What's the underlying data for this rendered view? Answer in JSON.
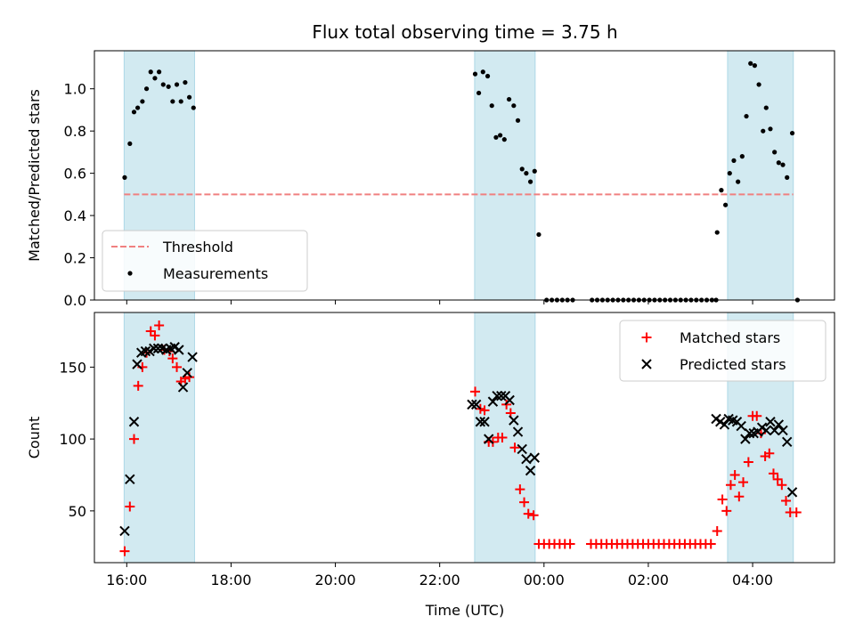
{
  "chart_data": {
    "title": "Flux total observing time = 3.75 h",
    "xlabel": "Time (UTC)",
    "x_unit": "hours since 16:00 UTC",
    "x_range": [
      -0.62,
      13.57
    ],
    "x_ticks": [
      {
        "t": 0,
        "label": "16:00"
      },
      {
        "t": 2,
        "label": "18:00"
      },
      {
        "t": 4,
        "label": "20:00"
      },
      {
        "t": 6,
        "label": "22:00"
      },
      {
        "t": 8,
        "label": "00:00"
      },
      {
        "t": 10,
        "label": "02:00"
      },
      {
        "t": 12,
        "label": "04:00"
      }
    ],
    "shaded_intervals": [
      [
        -0.05,
        1.3
      ],
      [
        6.67,
        7.83
      ],
      [
        11.52,
        12.78
      ]
    ],
    "colors": {
      "shade": "#add8e6",
      "threshold": "#f08080",
      "measurement": "#000000",
      "matched": "#ff0000",
      "predicted": "#000000"
    },
    "panels": [
      {
        "type": "scatter",
        "ylabel": "Matched/Predicted stars",
        "ylim": [
          0,
          1.18
        ],
        "y_ticks": [
          0.0,
          0.2,
          0.4,
          0.6,
          0.8,
          1.0
        ],
        "y_tick_labels": [
          "0.0",
          "0.2",
          "0.4",
          "0.6",
          "0.8",
          "1.0"
        ],
        "legend": [
          "Threshold",
          "Measurements"
        ],
        "legend_location": "lower-left",
        "threshold": {
          "name": "Threshold",
          "value": 0.5,
          "x_range": [
            -0.05,
            12.78
          ]
        },
        "series": [
          {
            "name": "Measurements",
            "marker": "dot",
            "points": [
              [
                -0.04,
                0.58
              ],
              [
                0.06,
                0.74
              ],
              [
                0.14,
                0.89
              ],
              [
                0.21,
                0.91
              ],
              [
                0.3,
                0.94
              ],
              [
                0.38,
                1.0
              ],
              [
                0.46,
                1.08
              ],
              [
                0.54,
                1.05
              ],
              [
                0.62,
                1.08
              ],
              [
                0.7,
                1.02
              ],
              [
                0.8,
                1.01
              ],
              [
                0.88,
                0.94
              ],
              [
                0.96,
                1.02
              ],
              [
                1.04,
                0.94
              ],
              [
                1.12,
                1.03
              ],
              [
                1.2,
                0.96
              ],
              [
                1.28,
                0.91
              ],
              [
                6.68,
                1.07
              ],
              [
                6.75,
                0.98
              ],
              [
                6.83,
                1.08
              ],
              [
                6.92,
                1.06
              ],
              [
                7.0,
                0.92
              ],
              [
                7.08,
                0.77
              ],
              [
                7.16,
                0.78
              ],
              [
                7.24,
                0.76
              ],
              [
                7.33,
                0.95
              ],
              [
                7.42,
                0.92
              ],
              [
                7.5,
                0.85
              ],
              [
                7.58,
                0.62
              ],
              [
                7.66,
                0.6
              ],
              [
                7.74,
                0.56
              ],
              [
                7.82,
                0.61
              ],
              [
                7.9,
                0.31
              ],
              [
                8.05,
                0
              ],
              [
                8.15,
                0
              ],
              [
                8.25,
                0
              ],
              [
                8.35,
                0
              ],
              [
                8.45,
                0
              ],
              [
                8.55,
                0
              ],
              [
                8.92,
                0
              ],
              [
                9.02,
                0
              ],
              [
                9.12,
                0
              ],
              [
                9.22,
                0
              ],
              [
                9.32,
                0
              ],
              [
                9.42,
                0
              ],
              [
                9.52,
                0
              ],
              [
                9.62,
                0
              ],
              [
                9.72,
                0
              ],
              [
                9.82,
                0
              ],
              [
                9.92,
                0
              ],
              [
                10.02,
                0
              ],
              [
                10.12,
                0
              ],
              [
                10.22,
                0
              ],
              [
                10.32,
                0
              ],
              [
                10.42,
                0
              ],
              [
                10.52,
                0
              ],
              [
                10.62,
                0
              ],
              [
                10.72,
                0
              ],
              [
                10.82,
                0
              ],
              [
                10.92,
                0
              ],
              [
                11.02,
                0
              ],
              [
                11.12,
                0
              ],
              [
                11.22,
                0
              ],
              [
                11.3,
                0
              ],
              [
                11.32,
                0.32
              ],
              [
                11.4,
                0.52
              ],
              [
                11.48,
                0.45
              ],
              [
                11.56,
                0.6
              ],
              [
                11.64,
                0.66
              ],
              [
                11.72,
                0.56
              ],
              [
                11.8,
                0.68
              ],
              [
                11.88,
                0.87
              ],
              [
                11.96,
                1.12
              ],
              [
                12.04,
                1.11
              ],
              [
                12.12,
                1.02
              ],
              [
                12.2,
                0.8
              ],
              [
                12.26,
                0.91
              ],
              [
                12.34,
                0.81
              ],
              [
                12.42,
                0.7
              ],
              [
                12.5,
                0.65
              ],
              [
                12.58,
                0.64
              ],
              [
                12.66,
                0.58
              ],
              [
                12.76,
                0.79
              ],
              [
                12.86,
                0.0
              ]
            ]
          }
        ]
      },
      {
        "type": "scatter",
        "ylabel": "Count",
        "ylim": [
          14,
          188
        ],
        "y_ticks": [
          50,
          100,
          150
        ],
        "y_tick_labels": [
          "50",
          "100",
          "150"
        ],
        "legend": [
          "Matched stars",
          "Predicted stars"
        ],
        "legend_location": "top-right",
        "series": [
          {
            "name": "Matched stars",
            "marker": "plus",
            "points": [
              [
                -0.04,
                22
              ],
              [
                0.06,
                53
              ],
              [
                0.14,
                100
              ],
              [
                0.22,
                137
              ],
              [
                0.3,
                150
              ],
              [
                0.38,
                160
              ],
              [
                0.46,
                175
              ],
              [
                0.54,
                172
              ],
              [
                0.62,
                179
              ],
              [
                0.72,
                162
              ],
              [
                0.82,
                161
              ],
              [
                0.88,
                156
              ],
              [
                0.96,
                150
              ],
              [
                1.04,
                140
              ],
              [
                1.12,
                142
              ],
              [
                1.2,
                143
              ],
              [
                6.68,
                133
              ],
              [
                6.78,
                121
              ],
              [
                6.86,
                120
              ],
              [
                6.94,
                98
              ],
              [
                7.02,
                98
              ],
              [
                7.12,
                101
              ],
              [
                7.2,
                101
              ],
              [
                7.28,
                124
              ],
              [
                7.36,
                118
              ],
              [
                7.44,
                94
              ],
              [
                7.54,
                65
              ],
              [
                7.62,
                56
              ],
              [
                7.7,
                48
              ],
              [
                7.8,
                47
              ],
              [
                7.9,
                27
              ],
              [
                8.0,
                27
              ],
              [
                8.1,
                27
              ],
              [
                8.2,
                27
              ],
              [
                8.3,
                27
              ],
              [
                8.4,
                27
              ],
              [
                8.5,
                27
              ],
              [
                8.9,
                27
              ],
              [
                9.0,
                27
              ],
              [
                9.1,
                27
              ],
              [
                9.2,
                27
              ],
              [
                9.3,
                27
              ],
              [
                9.4,
                27
              ],
              [
                9.5,
                27
              ],
              [
                9.6,
                27
              ],
              [
                9.7,
                27
              ],
              [
                9.8,
                27
              ],
              [
                9.9,
                27
              ],
              [
                10.0,
                27
              ],
              [
                10.1,
                27
              ],
              [
                10.2,
                27
              ],
              [
                10.3,
                27
              ],
              [
                10.4,
                27
              ],
              [
                10.5,
                27
              ],
              [
                10.6,
                27
              ],
              [
                10.7,
                27
              ],
              [
                10.8,
                27
              ],
              [
                10.9,
                27
              ],
              [
                11.0,
                27
              ],
              [
                11.1,
                27
              ],
              [
                11.2,
                27
              ],
              [
                11.32,
                36
              ],
              [
                11.42,
                58
              ],
              [
                11.5,
                50
              ],
              [
                11.58,
                68
              ],
              [
                11.66,
                75
              ],
              [
                11.74,
                60
              ],
              [
                11.82,
                70
              ],
              [
                11.92,
                84
              ],
              [
                12.0,
                116
              ],
              [
                12.08,
                116
              ],
              [
                12.16,
                104
              ],
              [
                12.24,
                88
              ],
              [
                12.32,
                90
              ],
              [
                12.4,
                76
              ],
              [
                12.48,
                72
              ],
              [
                12.56,
                68
              ],
              [
                12.64,
                57
              ],
              [
                12.72,
                49
              ],
              [
                12.84,
                49
              ]
            ]
          },
          {
            "name": "Predicted stars",
            "marker": "x",
            "points": [
              [
                -0.04,
                36
              ],
              [
                0.06,
                72
              ],
              [
                0.14,
                112
              ],
              [
                0.2,
                152
              ],
              [
                0.28,
                160
              ],
              [
                0.36,
                161
              ],
              [
                0.44,
                161
              ],
              [
                0.52,
                163
              ],
              [
                0.6,
                163
              ],
              [
                0.68,
                163
              ],
              [
                0.76,
                162
              ],
              [
                0.84,
                163
              ],
              [
                0.92,
                164
              ],
              [
                1.0,
                162
              ],
              [
                1.08,
                136
              ],
              [
                1.16,
                146
              ],
              [
                1.26,
                157
              ],
              [
                6.62,
                124
              ],
              [
                6.7,
                124
              ],
              [
                6.78,
                112
              ],
              [
                6.86,
                112
              ],
              [
                6.94,
                100
              ],
              [
                7.02,
                126
              ],
              [
                7.1,
                130
              ],
              [
                7.18,
                130
              ],
              [
                7.26,
                130
              ],
              [
                7.34,
                127
              ],
              [
                7.42,
                113
              ],
              [
                7.5,
                105
              ],
              [
                7.58,
                93
              ],
              [
                7.66,
                86
              ],
              [
                7.74,
                78
              ],
              [
                7.82,
                87
              ],
              [
                11.3,
                114
              ],
              [
                11.38,
                112
              ],
              [
                11.46,
                110
              ],
              [
                11.54,
                114
              ],
              [
                11.62,
                113
              ],
              [
                11.7,
                112
              ],
              [
                11.78,
                109
              ],
              [
                11.86,
                100
              ],
              [
                11.94,
                104
              ],
              [
                12.02,
                104
              ],
              [
                12.1,
                105
              ],
              [
                12.18,
                108
              ],
              [
                12.26,
                106
              ],
              [
                12.34,
                112
              ],
              [
                12.42,
                106
              ],
              [
                12.5,
                110
              ],
              [
                12.58,
                106
              ],
              [
                12.66,
                98
              ],
              [
                12.76,
                63
              ]
            ]
          }
        ]
      }
    ]
  }
}
